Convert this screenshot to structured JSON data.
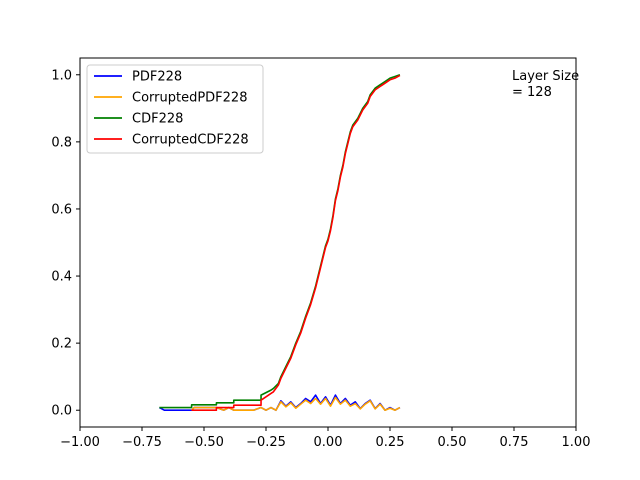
{
  "chart_data": {
    "type": "line",
    "xlim": [
      -1.0,
      1.0
    ],
    "ylim": [
      -0.05,
      1.05
    ],
    "x_ticks": [
      -1.0,
      -0.75,
      -0.5,
      -0.25,
      0.0,
      0.25,
      0.5,
      0.75,
      1.0
    ],
    "x_tick_labels": [
      "−1.00",
      "−0.75",
      "−0.50",
      "−0.25",
      "0.00",
      "0.25",
      "0.50",
      "0.75",
      "1.00"
    ],
    "y_ticks": [
      0.0,
      0.2,
      0.4,
      0.6,
      0.8,
      1.0
    ],
    "y_tick_labels": [
      "0.0",
      "0.2",
      "0.4",
      "0.6",
      "0.8",
      "1.0"
    ],
    "grid": false,
    "legend_position": "upper-left",
    "annotation": [
      "Layer Size",
      "= 128"
    ],
    "series": [
      {
        "name": "PDF228",
        "color": "#0000ff",
        "x": [
          -0.68,
          -0.66,
          -0.55,
          -0.54,
          -0.45,
          -0.42,
          -0.4,
          -0.38,
          -0.35,
          -0.3,
          -0.27,
          -0.25,
          -0.23,
          -0.21,
          -0.19,
          -0.17,
          -0.15,
          -0.13,
          -0.11,
          -0.09,
          -0.07,
          -0.05,
          -0.03,
          -0.01,
          0.01,
          0.03,
          0.05,
          0.07,
          0.09,
          0.11,
          0.13,
          0.15,
          0.17,
          0.19,
          0.21,
          0.23,
          0.25,
          0.27,
          0.29
        ],
        "y": [
          0.008,
          0.0,
          0.0,
          0.008,
          0.008,
          0.0,
          0.008,
          0.0,
          0.0,
          0.0,
          0.008,
          0.0,
          0.008,
          0.0,
          0.028,
          0.012,
          0.025,
          0.008,
          0.02,
          0.035,
          0.025,
          0.045,
          0.02,
          0.04,
          0.015,
          0.045,
          0.02,
          0.035,
          0.015,
          0.025,
          0.005,
          0.02,
          0.03,
          0.005,
          0.02,
          0.0,
          0.008,
          0.0,
          0.008
        ]
      },
      {
        "name": "CorruptedPDF228",
        "color": "#ffa500",
        "x": [
          -0.55,
          -0.54,
          -0.45,
          -0.42,
          -0.4,
          -0.38,
          -0.35,
          -0.3,
          -0.27,
          -0.25,
          -0.23,
          -0.21,
          -0.19,
          -0.17,
          -0.15,
          -0.13,
          -0.11,
          -0.09,
          -0.07,
          -0.05,
          -0.03,
          -0.01,
          0.01,
          0.03,
          0.05,
          0.07,
          0.09,
          0.11,
          0.13,
          0.15,
          0.17,
          0.19,
          0.21,
          0.23,
          0.25,
          0.27,
          0.29
        ],
        "y": [
          0.0,
          0.008,
          0.008,
          0.0,
          0.008,
          0.0,
          0.0,
          0.0,
          0.008,
          0.0,
          0.008,
          0.0,
          0.025,
          0.01,
          0.022,
          0.006,
          0.018,
          0.03,
          0.02,
          0.035,
          0.018,
          0.035,
          0.012,
          0.038,
          0.018,
          0.03,
          0.012,
          0.02,
          0.004,
          0.018,
          0.028,
          0.004,
          0.018,
          0.0,
          0.006,
          0.0,
          0.008
        ]
      },
      {
        "name": "CDF228",
        "color": "#008000",
        "x": [
          -0.68,
          -0.55,
          -0.55,
          -0.45,
          -0.45,
          -0.38,
          -0.38,
          -0.27,
          -0.27,
          -0.23,
          -0.22,
          -0.2,
          -0.19,
          -0.17,
          -0.15,
          -0.13,
          -0.11,
          -0.09,
          -0.07,
          -0.05,
          -0.03,
          -0.02,
          -0.01,
          0.0,
          0.01,
          0.02,
          0.03,
          0.04,
          0.05,
          0.06,
          0.07,
          0.08,
          0.09,
          0.1,
          0.12,
          0.14,
          0.16,
          0.17,
          0.19,
          0.21,
          0.23,
          0.25,
          0.27,
          0.29
        ],
        "y": [
          0.008,
          0.008,
          0.016,
          0.016,
          0.022,
          0.022,
          0.03,
          0.03,
          0.045,
          0.06,
          0.065,
          0.08,
          0.1,
          0.13,
          0.16,
          0.2,
          0.235,
          0.28,
          0.32,
          0.37,
          0.43,
          0.46,
          0.49,
          0.51,
          0.54,
          0.58,
          0.63,
          0.66,
          0.7,
          0.73,
          0.77,
          0.8,
          0.83,
          0.85,
          0.87,
          0.9,
          0.92,
          0.94,
          0.96,
          0.97,
          0.98,
          0.99,
          0.995,
          1.0
        ]
      },
      {
        "name": "CorruptedCDF228",
        "color": "#ff0000",
        "x": [
          -0.55,
          -0.45,
          -0.45,
          -0.38,
          -0.38,
          -0.27,
          -0.27,
          -0.23,
          -0.22,
          -0.2,
          -0.19,
          -0.17,
          -0.15,
          -0.13,
          -0.11,
          -0.09,
          -0.07,
          -0.05,
          -0.03,
          -0.02,
          -0.01,
          0.0,
          0.01,
          0.02,
          0.03,
          0.04,
          0.05,
          0.06,
          0.07,
          0.08,
          0.09,
          0.1,
          0.12,
          0.14,
          0.16,
          0.17,
          0.19,
          0.21,
          0.23,
          0.25,
          0.27,
          0.29
        ],
        "y": [
          0.0,
          0.0,
          0.008,
          0.008,
          0.015,
          0.015,
          0.03,
          0.05,
          0.055,
          0.075,
          0.095,
          0.125,
          0.155,
          0.195,
          0.23,
          0.275,
          0.315,
          0.365,
          0.425,
          0.455,
          0.485,
          0.505,
          0.535,
          0.575,
          0.625,
          0.655,
          0.695,
          0.725,
          0.765,
          0.795,
          0.825,
          0.845,
          0.865,
          0.895,
          0.915,
          0.935,
          0.955,
          0.965,
          0.975,
          0.985,
          0.99,
          0.998
        ]
      }
    ]
  }
}
